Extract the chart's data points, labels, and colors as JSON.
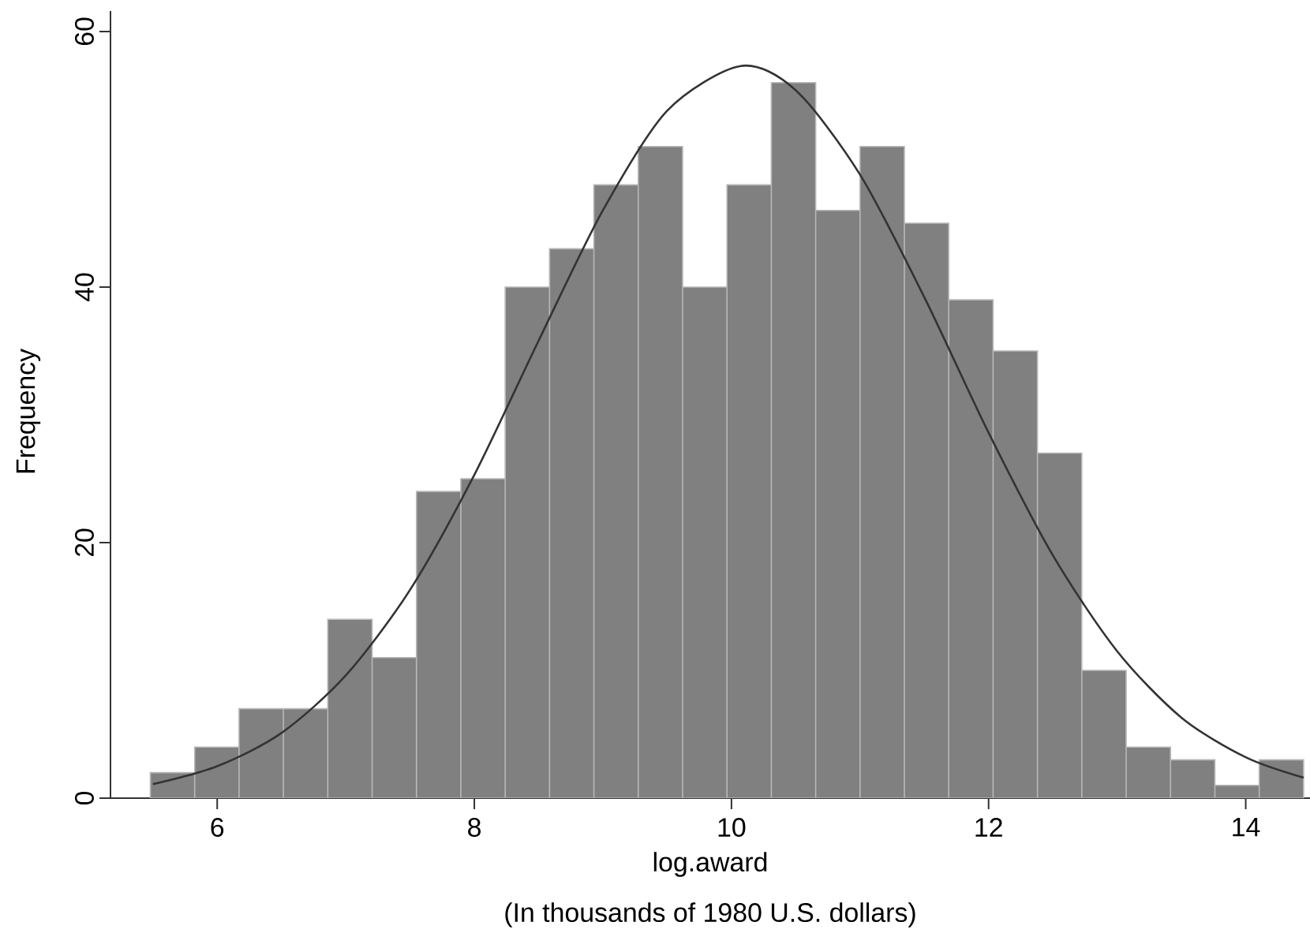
{
  "chart_data": {
    "type": "histogram",
    "xlabel": "log.award",
    "ylabel": "Frequency",
    "annotations": [
      "(In thousands of 1980 U.S. dollars)"
    ],
    "bins": [
      5.48,
      5.825,
      6.17,
      6.515,
      6.86,
      7.205,
      7.55,
      7.895,
      8.24,
      8.585,
      8.93,
      9.275,
      9.62,
      9.965,
      10.31,
      10.655,
      11.0,
      11.345,
      11.69,
      12.035,
      12.38,
      12.725,
      13.07,
      13.415,
      13.76,
      14.105,
      14.45
    ],
    "values": [
      2,
      4,
      7,
      7,
      14,
      11,
      24,
      25,
      40,
      43,
      48,
      51,
      40,
      48,
      56,
      46,
      51,
      45,
      39,
      35,
      27,
      10,
      4,
      3,
      1,
      3
    ],
    "color": "#808080",
    "series": [
      {
        "type": "line",
        "color": "#333333",
        "x": [
          5.5,
          6,
          6.5,
          7,
          7.5,
          8,
          8.5,
          9,
          9.5,
          10.07,
          10.5,
          11,
          11.5,
          12,
          12.5,
          13,
          13.5,
          14,
          14.45
        ],
        "values": [
          1.1,
          2.5,
          5.1,
          9.6,
          16.3,
          25.3,
          35.8,
          46.0,
          53.8,
          57.3,
          55.4,
          48.8,
          39.2,
          28.6,
          19.0,
          11.5,
          6.3,
          3.2,
          1.6
        ]
      }
    ],
    "xlim": [
      5.17,
      14.5
    ],
    "ylim": [
      0,
      61.6
    ],
    "xticks": [
      6,
      8,
      10,
      12,
      14
    ],
    "yticks": [
      0,
      20,
      40,
      60
    ],
    "grid": false
  }
}
